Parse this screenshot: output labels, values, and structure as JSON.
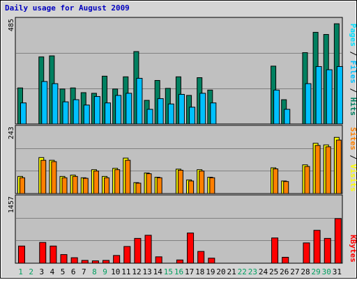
{
  "chart_data": {
    "type": "bar",
    "title": "Daily usage for August 2009",
    "colors": {
      "hits": "#008060",
      "files": "#00c0ff",
      "pages": "#00e0ff",
      "visits": "#ffff00",
      "sites": "#ff8000",
      "kbytes": "#ff0000",
      "title": "#0000c0",
      "weekend_day": "#00a060",
      "weekday": "#000000",
      "panel_bg": "#c0c0c0",
      "frame_bg": "#d4d4d4"
    },
    "categories": [
      "1",
      "2",
      "3",
      "4",
      "5",
      "6",
      "7",
      "8",
      "9",
      "10",
      "11",
      "12",
      "13",
      "14",
      "15",
      "16",
      "17",
      "18",
      "19",
      "20",
      "21",
      "22",
      "23",
      "24",
      "25",
      "26",
      "27",
      "28",
      "29",
      "30",
      "31"
    ],
    "weekend_days": [
      "1",
      "2",
      "8",
      "9",
      "15",
      "16",
      "22",
      "23",
      "29",
      "30"
    ],
    "panels": [
      {
        "id": "top",
        "max_label": "485",
        "ylim": [
          0,
          485
        ],
        "side_label": {
          "pages": "Pages",
          "files": "Files",
          "hits": "Hits",
          "sep": " / "
        },
        "series": [
          {
            "key": "hits",
            "values": [
              170,
              0,
              315,
              320,
              165,
              170,
              148,
              145,
              225,
              165,
              222,
              340,
              112,
              205,
              168,
              0,
              0,
              0,
              0,
              0,
              0,
              0,
              0,
              0,
              0,
              0,
              0,
              0,
              0,
              0,
              0
            ]
          },
          {
            "key": "files",
            "values": [
              0,
              0,
              0,
              0,
              0,
              0,
              0,
              0,
              0,
              0,
              0,
              0,
              0,
              0,
              0,
              222,
              135,
              218,
              160,
              0,
              0,
              0,
              0,
              0,
              272,
              115,
              0,
              335,
              430,
              420,
              470
            ]
          },
          {
            "key": "pages",
            "values": [
              100,
              0,
              200,
              190,
              105,
              115,
              90,
              130,
              100,
              135,
              145,
              215,
              70,
              120,
              95,
              0,
              0,
              0,
              0,
              0,
              0,
              0,
              0,
              0,
              0,
              0,
              0,
              0,
              0,
              0,
              0
            ]
          },
          {
            "key": "pages_b",
            "values": [
              0,
              0,
              0,
              0,
              0,
              0,
              0,
              0,
              0,
              0,
              0,
              0,
              0,
              0,
              0,
              140,
              80,
              145,
              100,
              0,
              0,
              0,
              0,
              0,
              160,
              70,
              0,
              190,
              270,
              255,
              270
            ]
          }
        ]
      },
      {
        "id": "mid",
        "max_label": "243",
        "ylim": [
          0,
          243
        ],
        "side_label": {
          "sites": "Sites",
          "visits": "Visits",
          "sep": " / "
        },
        "series": [
          {
            "key": "visits",
            "values": [
              65,
              0,
              135,
              125,
              65,
              70,
              60,
              90,
              65,
              95,
              133,
              42,
              78,
              62,
              0,
              92,
              52,
              90,
              62,
              0,
              0,
              0,
              0,
              0,
              97,
              48,
              0,
              108,
              188,
              182,
              210
            ]
          },
          {
            "key": "sites",
            "values": [
              60,
              0,
              125,
              120,
              60,
              65,
              58,
              85,
              60,
              90,
              125,
              40,
              75,
              60,
              0,
              88,
              48,
              85,
              60,
              0,
              0,
              0,
              0,
              0,
              93,
              46,
              0,
              102,
              180,
              175,
              200
            ]
          }
        ]
      },
      {
        "id": "bot",
        "max_label": "1457",
        "ylim": [
          0,
          1457
        ],
        "side_label": {
          "kbytes": "KBytes"
        },
        "series": [
          {
            "key": "kbytes",
            "values": [
              390,
              0,
              470,
              390,
              200,
              130,
              70,
              60,
              70,
              180,
              380,
              560,
              630,
              150,
              0,
              80,
              680,
              270,
              120,
              0,
              0,
              0,
              0,
              0,
              570,
              140,
              0,
              460,
              740,
              560,
              1000
            ]
          }
        ]
      }
    ]
  }
}
